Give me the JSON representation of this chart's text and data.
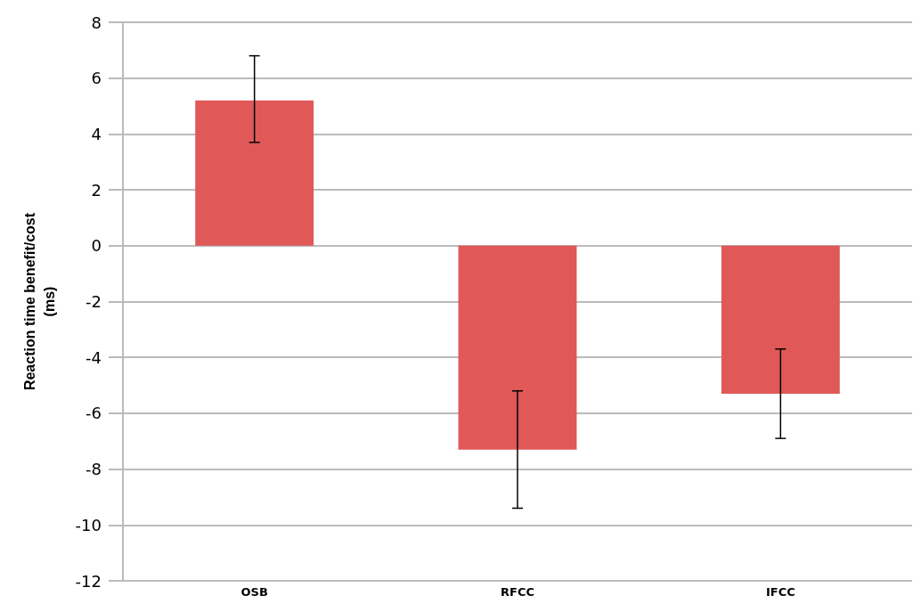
{
  "chart_data": {
    "type": "bar",
    "ylabel": "Reaction time benefit/cost\n(ms)",
    "categories": [
      "OSB",
      "RFCC",
      "IFCC"
    ],
    "values": [
      5.2,
      -7.3,
      -5.3
    ],
    "errors": [
      [
        3.7,
        6.8
      ],
      [
        -9.4,
        -5.2
      ],
      [
        -6.9,
        -3.7
      ]
    ],
    "color": "#e05858",
    "ylim": [
      -12,
      8
    ],
    "yticks": [
      -12,
      -10,
      -8,
      -6,
      -4,
      -2,
      0,
      2,
      4,
      6,
      8
    ],
    "grid": "y"
  }
}
